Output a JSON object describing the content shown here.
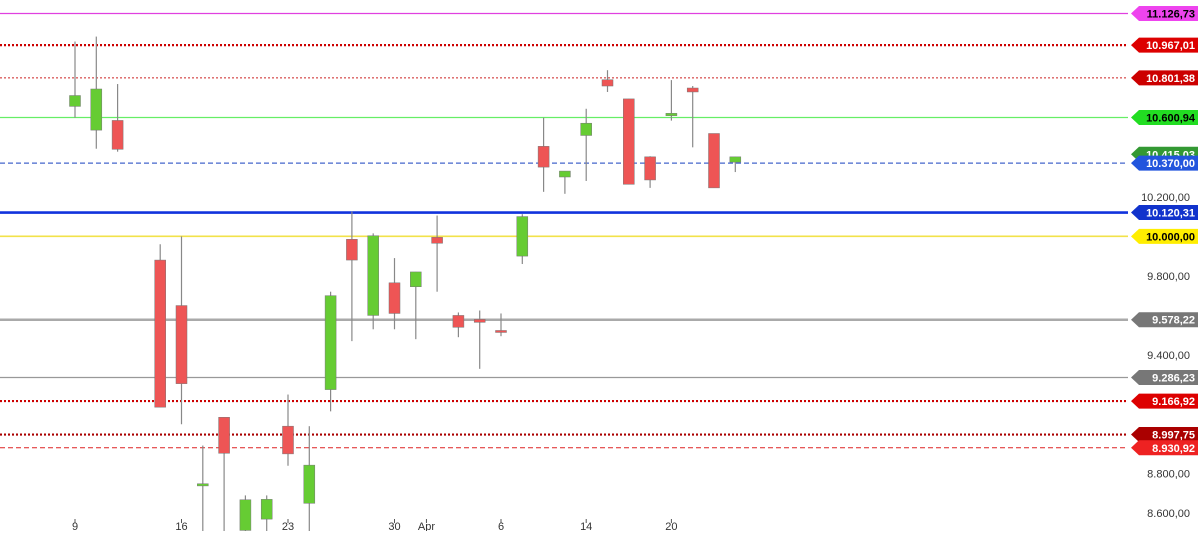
{
  "chart_data": {
    "type": "candlestick",
    "title": "",
    "xlabel": "",
    "ylabel": "",
    "ylim": [
      8510,
      11195
    ],
    "grid": false,
    "y_ticks": [
      {
        "value": 10200,
        "label": "10.200,00"
      },
      {
        "value": 9800,
        "label": "9.800,00"
      },
      {
        "value": 9400,
        "label": "9.400,00"
      },
      {
        "value": 8800,
        "label": "8.800,00"
      },
      {
        "value": 8600,
        "label": "8.600,00"
      }
    ],
    "x_ticks": [
      {
        "index": 0,
        "label": "9"
      },
      {
        "index": 5,
        "label": "16"
      },
      {
        "index": 10,
        "label": "23"
      },
      {
        "index": 15,
        "label": "30"
      },
      {
        "index": 16.5,
        "label": "Apr"
      },
      {
        "index": 20,
        "label": "6"
      },
      {
        "index": 24,
        "label": "14"
      },
      {
        "index": 28,
        "label": "20"
      }
    ],
    "candles": [
      {
        "open": 10657,
        "close": 10712,
        "high": 10985,
        "low": 10600
      },
      {
        "open": 10537,
        "close": 10745,
        "high": 11010,
        "low": 10443
      },
      {
        "open": 10586,
        "close": 10440,
        "high": 10770,
        "low": 10428
      },
      {
        "open": null,
        "close": null,
        "high": null,
        "low": null
      },
      {
        "open": 9880,
        "close": 9136,
        "high": 9960,
        "low": 9136
      },
      {
        "open": 9650,
        "close": 9255,
        "high": 10000,
        "low": 9050
      },
      {
        "open": 8738,
        "close": 8749,
        "high": 8942,
        "low": 8510
      },
      {
        "open": 9085,
        "close": 8903,
        "high": 9085,
        "low": 8510
      },
      {
        "open": 8513,
        "close": 8668,
        "high": 8690,
        "low": 8510
      },
      {
        "open": 8570,
        "close": 8670,
        "high": 8690,
        "low": 8510
      },
      {
        "open": 9040,
        "close": 8900,
        "high": 9200,
        "low": 8840
      },
      {
        "open": 8650,
        "close": 8843,
        "high": 9040,
        "low": 8510
      },
      {
        "open": 9225,
        "close": 9700,
        "high": 9720,
        "low": 9115
      },
      {
        "open": 9985,
        "close": 9880,
        "high": 10125,
        "low": 9470
      },
      {
        "open": 9600,
        "close": 10003,
        "high": 10015,
        "low": 9530
      },
      {
        "open": 9765,
        "close": 9610,
        "high": 9890,
        "low": 9530
      },
      {
        "open": 9745,
        "close": 9820,
        "high": 9820,
        "low": 9480
      },
      {
        "open": 9995,
        "close": 9965,
        "high": 10105,
        "low": 9720
      },
      {
        "open": 9600,
        "close": 9540,
        "high": 9615,
        "low": 9490
      },
      {
        "open": 9580,
        "close": 9565,
        "high": 9625,
        "low": 9330
      },
      {
        "open": 9524,
        "close": 9514,
        "high": 9610,
        "low": 9495
      },
      {
        "open": 9900,
        "close": 10100,
        "high": 10112,
        "low": 9860
      },
      {
        "open": 10455,
        "close": 10350,
        "high": 10600,
        "low": 10225
      },
      {
        "open": 10300,
        "close": 10330,
        "high": 10330,
        "low": 10215
      },
      {
        "open": 10510,
        "close": 10572,
        "high": 10645,
        "low": 10280
      },
      {
        "open": 10792,
        "close": 10760,
        "high": 10840,
        "low": 10730
      },
      {
        "open": 10695,
        "close": 10263,
        "high": 10695,
        "low": 10263
      },
      {
        "open": 10402,
        "close": 10285,
        "high": 10405,
        "low": 10245
      },
      {
        "open": 10610,
        "close": 10622,
        "high": 10790,
        "low": 10585
      },
      {
        "open": 10750,
        "close": 10730,
        "high": 10760,
        "low": 10450
      },
      {
        "open": 10520,
        "close": 10245,
        "high": 10520,
        "low": 10245
      },
      {
        "open": 10375,
        "close": 10402,
        "high": 10402,
        "low": 10325
      }
    ],
    "levels": [
      {
        "value": 11126.73,
        "label": "11.126,73",
        "color": "#e040e0",
        "label_bg": "#ee44ee",
        "label_fg": "#000000",
        "style": "solid",
        "width": 1.2
      },
      {
        "value": 10967.01,
        "label": "10.967,01",
        "color": "#cc0000",
        "label_bg": "#dd0000",
        "label_fg": "#ffffff",
        "style": "dotted",
        "width": 2.2
      },
      {
        "value": 10801.38,
        "label": "10.801,38",
        "color": "#cc2222",
        "label_bg": "#cc0000",
        "label_fg": "#ffffff",
        "style": "dotted",
        "width": 1
      },
      {
        "value": 10600.94,
        "label": "10.600,94",
        "color": "#66ee66",
        "label_bg": "#22dd22",
        "label_fg": "#000000",
        "style": "solid",
        "width": 1.3
      },
      {
        "value": 10415.03,
        "label": "10.415,03",
        "color": "#44aa44",
        "label_bg": "#339933",
        "label_fg": "#ffffff",
        "style": "none",
        "width": 0
      },
      {
        "value": 10370.0,
        "label": "10.370,00",
        "color": "#4466cc",
        "label_bg": "#2255dd",
        "label_fg": "#ffffff",
        "style": "dashed",
        "width": 1.2
      },
      {
        "value": 10120.31,
        "label": "10.120,31",
        "color": "#1133dd",
        "label_bg": "#1133cc",
        "label_fg": "#ffffff",
        "style": "solid",
        "width": 2.6
      },
      {
        "value": 10000.0,
        "label": "10.000,00",
        "color": "#f2e24a",
        "label_bg": "#ffee00",
        "label_fg": "#000000",
        "style": "solid",
        "width": 1.6
      },
      {
        "value": 9578.22,
        "label": "9.578,22",
        "color": "#aaaaaa",
        "label_bg": "#777777",
        "label_fg": "#ffffff",
        "style": "solid",
        "width": 2.6
      },
      {
        "value": 9286.23,
        "label": "9.286,23",
        "color": "#999999",
        "label_bg": "#777777",
        "label_fg": "#ffffff",
        "style": "solid",
        "width": 1.3
      },
      {
        "value": 9166.92,
        "label": "9.166,92",
        "color": "#cc0000",
        "label_bg": "#dd0000",
        "label_fg": "#ffffff",
        "style": "dotted",
        "width": 2.2
      },
      {
        "value": 8997.75,
        "label": "8.997,75",
        "color": "#aa0000",
        "label_bg": "#aa0000",
        "label_fg": "#ffffff",
        "style": "dotted",
        "width": 2.2
      },
      {
        "value": 8930.92,
        "label": "8.930,92",
        "color": "#dd2222",
        "label_bg": "#ee2222",
        "label_fg": "#ffffff",
        "style": "dashed",
        "width": 1
      }
    ],
    "up_color": "#66cc33",
    "down_color": "#ee5555",
    "wick_color": "#888888"
  }
}
